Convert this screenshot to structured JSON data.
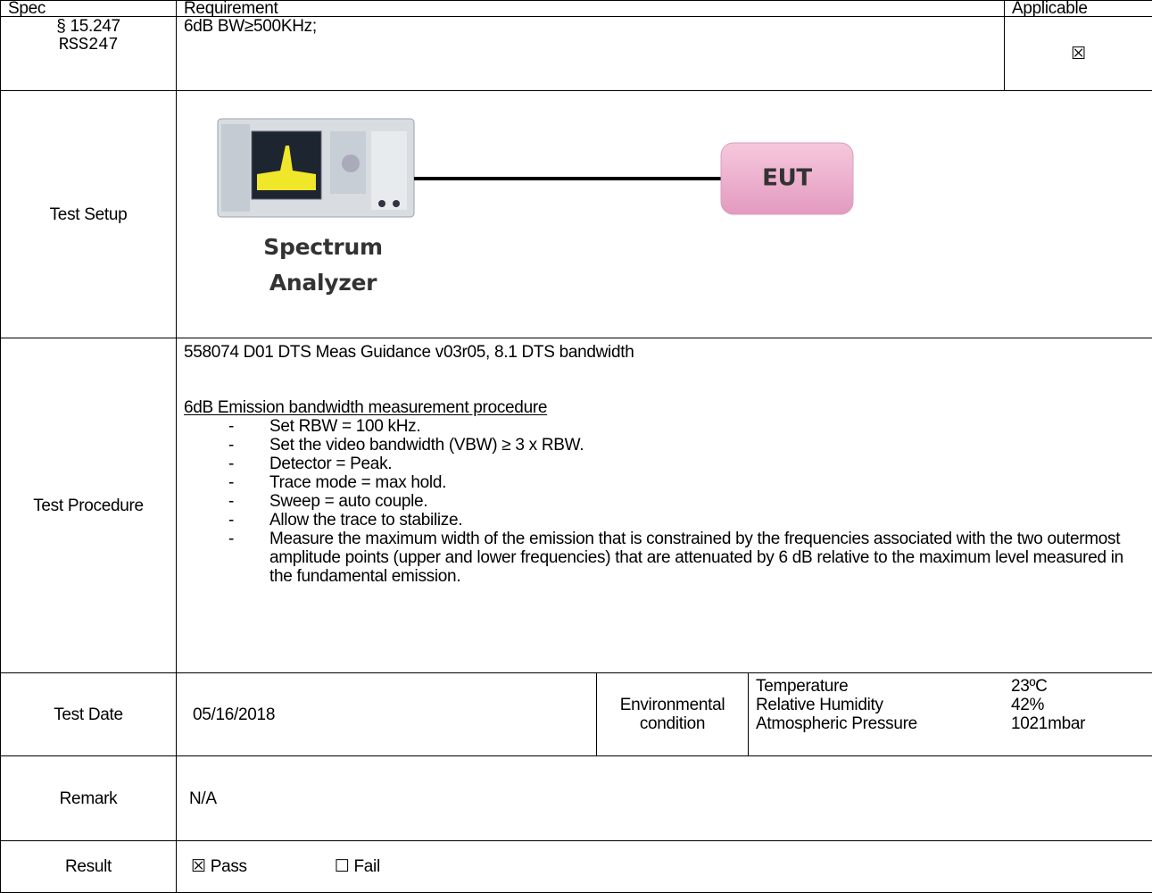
{
  "header": {
    "spec": "Spec",
    "requirement": "Requirement",
    "applicable": "Applicable"
  },
  "spec_row": {
    "section": "§ 15.247",
    "rss": "RSS247",
    "requirement": "6dB BW≥500KHz;",
    "applicable": "☒"
  },
  "setup": {
    "label": "Test Setup",
    "analyzer": [
      "Spectrum",
      "Analyzer"
    ],
    "eut": "EUT"
  },
  "procedure": {
    "label": "Test Procedure",
    "reference": "558074 D01 DTS Meas Guidance v03r05, 8.1 DTS bandwidth",
    "heading": "6dB Emission bandwidth measurement procedure",
    "bullet": "-",
    "steps": [
      "Set RBW = 100 kHz.",
      "Set the video bandwidth (VBW) ≥ 3 x RBW.",
      "Detector = Peak.",
      "Trace mode = max hold.",
      "Sweep = auto couple.",
      "Allow the trace to stabilize.",
      "Measure the maximum width of the emission that is constrained by the frequencies associated with the two outermost amplitude points (upper and lower frequencies) that are attenuated by 6 dB relative to the maximum level measured in the fundamental emission."
    ]
  },
  "test_date": {
    "label": "Test Date",
    "value": "05/16/2018",
    "env_label": "Environmental condition",
    "conditions": [
      {
        "name": "Temperature",
        "value": "23ºC"
      },
      {
        "name": "Relative Humidity",
        "value": "42%"
      },
      {
        "name": "Atmospheric Pressure",
        "value": "1021mbar"
      }
    ]
  },
  "remark": {
    "label": "Remark",
    "value": "N/A"
  },
  "result": {
    "label": "Result",
    "pass_box": "☒",
    "pass": "Pass",
    "fail_box": "☐",
    "fail": "Fail"
  }
}
